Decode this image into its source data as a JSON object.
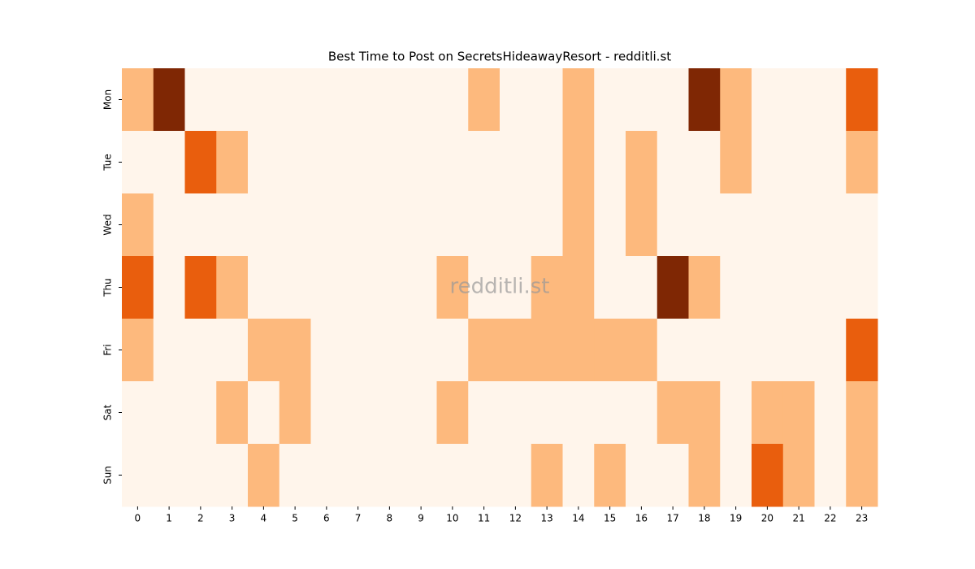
{
  "chart_data": {
    "type": "heatmap",
    "title": "Best Time to Post on SecretsHideawayResort - redditli.st",
    "watermark": "redditli.st",
    "x": [
      0,
      1,
      2,
      3,
      4,
      5,
      6,
      7,
      8,
      9,
      10,
      11,
      12,
      13,
      14,
      15,
      16,
      17,
      18,
      19,
      20,
      21,
      22,
      23
    ],
    "categories": [
      "Mon",
      "Tue",
      "Wed",
      "Thu",
      "Fri",
      "Sat",
      "Sun"
    ],
    "values": [
      [
        1,
        3,
        0,
        0,
        0,
        0,
        0,
        0,
        0,
        0,
        0,
        1,
        0,
        0,
        1,
        0,
        0,
        0,
        3,
        1,
        0,
        0,
        0,
        2
      ],
      [
        0,
        0,
        2,
        1,
        0,
        0,
        0,
        0,
        0,
        0,
        0,
        0,
        0,
        0,
        1,
        0,
        1,
        0,
        0,
        1,
        0,
        0,
        0,
        1
      ],
      [
        1,
        0,
        0,
        0,
        0,
        0,
        0,
        0,
        0,
        0,
        0,
        0,
        0,
        0,
        1,
        0,
        1,
        0,
        0,
        0,
        0,
        0,
        0,
        0
      ],
      [
        2,
        0,
        2,
        1,
        0,
        0,
        0,
        0,
        0,
        0,
        1,
        0,
        0,
        1,
        1,
        0,
        0,
        3,
        1,
        0,
        0,
        0,
        0,
        0
      ],
      [
        1,
        0,
        0,
        0,
        1,
        1,
        0,
        0,
        0,
        0,
        0,
        1,
        1,
        1,
        1,
        1,
        1,
        0,
        0,
        0,
        0,
        0,
        0,
        2
      ],
      [
        0,
        0,
        0,
        1,
        0,
        1,
        0,
        0,
        0,
        0,
        1,
        0,
        0,
        0,
        0,
        0,
        0,
        1,
        1,
        0,
        1,
        1,
        0,
        1
      ],
      [
        0,
        0,
        0,
        0,
        1,
        0,
        0,
        0,
        0,
        0,
        0,
        0,
        0,
        1,
        0,
        1,
        0,
        0,
        1,
        0,
        2,
        1,
        0,
        1
      ]
    ],
    "zlim": [
      0,
      3
    ],
    "colorscale": [
      "#fff5eb",
      "#fdb97d",
      "#e95e0d",
      "#7f2704"
    ]
  }
}
